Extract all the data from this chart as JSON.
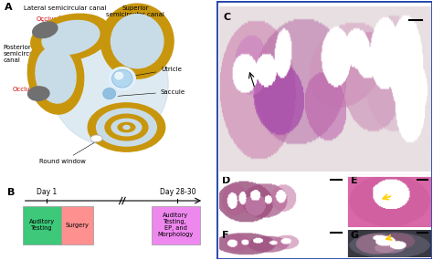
{
  "panel_A": {
    "label": "A",
    "colors": {
      "outer_canal": "#C8960C",
      "inner_fluid": "#C8DCE8",
      "dark_region": "#707070",
      "occlusion_text": "#CC0000",
      "background": "#FFFFFF",
      "utricle_fill": "#A8C8E0",
      "utricle_glow": "#D0E8F8"
    }
  },
  "panel_B": {
    "label": "B",
    "timeline": {
      "day1": "Day 1",
      "day28": "Day 28-30",
      "box1_label": "Auditory\nTesting",
      "box1_color": "#3DC87A",
      "box2_label": "Surgery",
      "box2_color": "#FF9090",
      "box3_label": "Auditory\nTesting,\nEP, and\nMorphology",
      "box3_color": "#EE88EE"
    }
  },
  "panels_right": {
    "border_color": "#2244AA",
    "C_bg": "#E8DDE0",
    "D_bg": "#F2EAF0",
    "E_bg": "#D060A0",
    "F_bg": "#F2EAF0",
    "G_bg": "#404050",
    "tissue_pink": "#C06090",
    "tissue_dark": "#8030608",
    "arrow_yellow": "#FFD000",
    "arrow_black": "#000000"
  },
  "figure": {
    "bg_color": "#FFFFFF"
  }
}
